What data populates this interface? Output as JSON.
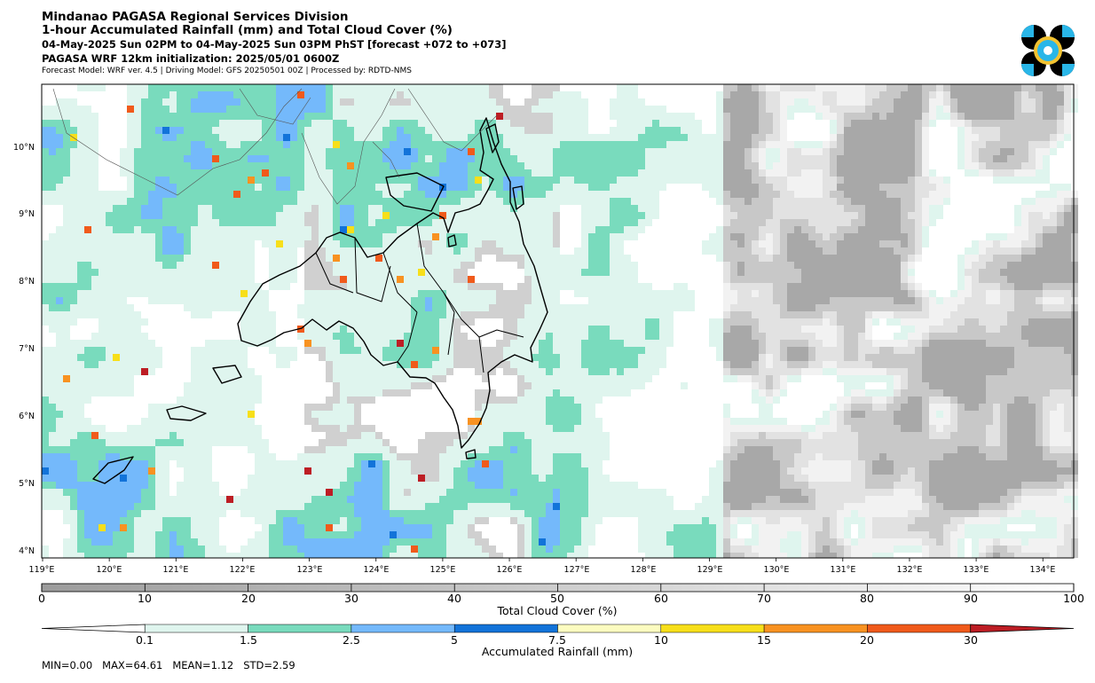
{
  "header": {
    "line1": "Mindanao PAGASA Regional Services Division",
    "line2": "1-hour Accumulated Rainfall (mm) and Total Cloud Cover (%)",
    "line3": "04-May-2025 Sun 02PM to 04-May-2025 Sun 03PM PhST [forecast +072 to +073]",
    "line4": "PAGASA WRF 12km initialization: 2025/05/01 0600Z",
    "line5": "Forecast Model: WRF ver. 4.5 | Driving Model: GFS 20250501 00Z | Processed by: RDTD-NMS"
  },
  "logo": {
    "icon": "pagasa-seal-icon",
    "colors": [
      "#000000",
      "#29b6e8",
      "#f2c230"
    ]
  },
  "map": {
    "lat_labels": [
      "10°N",
      "9°N",
      "8°N",
      "7°N",
      "6°N",
      "5°N",
      "4°N"
    ],
    "lon_labels": [
      "119°E",
      "120°E",
      "121°E",
      "122°E",
      "123°E",
      "124°E",
      "125°E",
      "126°E",
      "127°E",
      "128°E",
      "129°E",
      "130°E",
      "131°E",
      "132°E",
      "133°E",
      "134°E"
    ]
  },
  "cloud_bar": {
    "ticks": [
      "0",
      "10",
      "20",
      "30",
      "40",
      "50",
      "60",
      "70",
      "80",
      "90",
      "100"
    ],
    "title": "Total Cloud Cover (%)"
  },
  "rain_bar": {
    "ticks": [
      "0.1",
      "1.5",
      "2.5",
      "5",
      "7.5",
      "10",
      "15",
      "20",
      "30"
    ],
    "colors": [
      "#dff5ee",
      "#79dbbd",
      "#74b9fb",
      "#1273d9",
      "#fcfcc0",
      "#f7df1a",
      "#f89221",
      "#f05a1b",
      "#bd1d24"
    ],
    "title": "Accumulated Rainfall (mm)"
  },
  "stats": {
    "min_label": "MIN=0.00",
    "max_label": "MAX=64.61",
    "mean_label": "MEAN=1.12",
    "std_label": "STD=2.59"
  }
}
